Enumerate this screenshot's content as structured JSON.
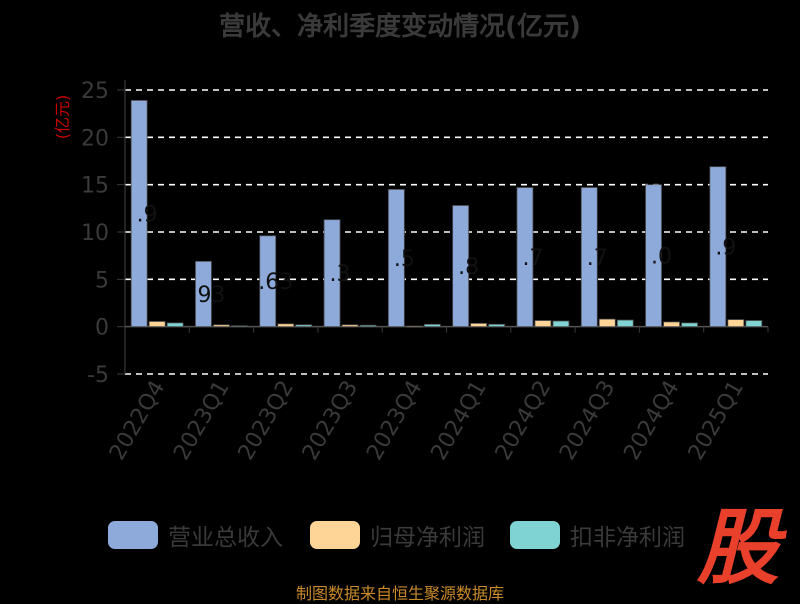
{
  "chart_data": {
    "type": "bar",
    "title": "营收、净利季度变动情况(亿元)",
    "ylabel": "(亿元)",
    "ylim": [
      -5,
      25
    ],
    "yticks": [
      -5,
      0,
      5,
      10,
      15,
      20,
      25
    ],
    "grid": true,
    "legend_position": "bottom",
    "categories": [
      "2022Q4",
      "2023Q1",
      "2023Q2",
      "2023Q3",
      "2023Q4",
      "2024Q1",
      "2024Q2",
      "2024Q3",
      "2024Q4",
      "2025Q1"
    ],
    "series": [
      {
        "name": "营业总收入",
        "color": "#8eaadb",
        "values": [
          23.9,
          6.9,
          9.6,
          11.3,
          14.5,
          12.8,
          14.7,
          14.7,
          15.0,
          16.9
        ]
      },
      {
        "name": "归母净利润",
        "color": "#ffd597",
        "values": [
          0.55,
          0.2,
          0.3,
          0.2,
          0.05,
          0.35,
          0.65,
          0.8,
          0.5,
          0.75
        ]
      },
      {
        "name": "扣非净利润",
        "color": "#7fd3d3",
        "values": [
          0.4,
          0.1,
          0.2,
          0.15,
          0.25,
          0.25,
          0.6,
          0.7,
          0.4,
          0.65
        ]
      }
    ],
    "data_labels": [
      ".9",
      "93",
      ".63",
      ".3",
      ".5",
      ".8",
      ".7",
      ".7",
      ".0",
      ".9"
    ]
  },
  "source": "制图数据来自恒生聚源数据库",
  "watermark": "股"
}
